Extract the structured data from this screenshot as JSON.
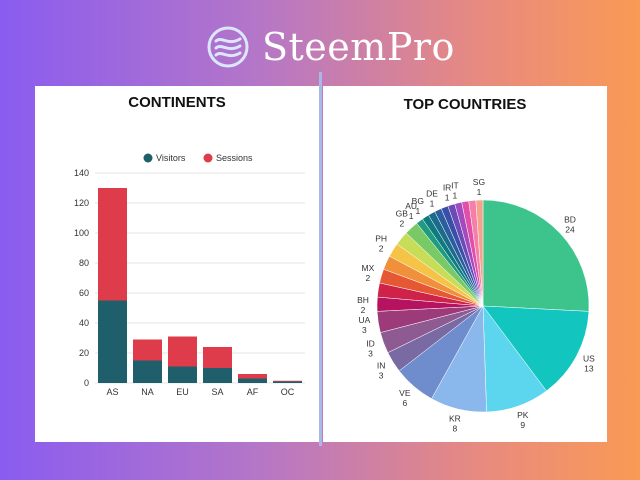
{
  "brand": {
    "name": "SteemPro",
    "logo_icon": "waves-logo-icon"
  },
  "colors": {
    "visitors": "#1f5f6b",
    "sessions": "#de3c4b",
    "divider": "#a9b8e8"
  },
  "chart_data": [
    {
      "type": "bar",
      "stacked": true,
      "title": "CONTINENTS",
      "categories": [
        "AS",
        "NA",
        "EU",
        "SA",
        "AF",
        "OC"
      ],
      "series": [
        {
          "name": "Visitors",
          "values": [
            55,
            15,
            11,
            10,
            3,
            1
          ]
        },
        {
          "name": "Sessions",
          "values": [
            75,
            14,
            20,
            14,
            3,
            0.5
          ]
        }
      ],
      "ylim": [
        0,
        140
      ],
      "yticks": [
        0,
        20,
        40,
        60,
        80,
        100,
        120,
        140
      ],
      "grid": true,
      "legend": "top"
    },
    {
      "type": "pie",
      "title": "TOP COUNTRIES",
      "slices": [
        {
          "label": "BD",
          "value": 24,
          "color": "#3cc48c"
        },
        {
          "label": "US",
          "value": 13,
          "color": "#12c6bf"
        },
        {
          "label": "PK",
          "value": 9,
          "color": "#5bd6ee"
        },
        {
          "label": "KR",
          "value": 8,
          "color": "#8ab8ec"
        },
        {
          "label": "VE",
          "value": 6,
          "color": "#6f8ccc"
        },
        {
          "label": "IN",
          "value": 3,
          "color": "#7a6aa3"
        },
        {
          "label": "ID",
          "value": 3,
          "color": "#8d5a92"
        },
        {
          "label": "UA",
          "value": 3,
          "color": "#9c3a7a"
        },
        {
          "label": "BH",
          "value": 2,
          "color": "#b5135f"
        },
        {
          "label": "",
          "value": 2,
          "color": "#cf2248"
        },
        {
          "label": "MX",
          "value": 2,
          "color": "#e65834"
        },
        {
          "label": "",
          "value": 2,
          "color": "#f0903a"
        },
        {
          "label": "PH",
          "value": 2,
          "color": "#f5c447"
        },
        {
          "label": "",
          "value": 2,
          "color": "#c7dd57"
        },
        {
          "label": "GB",
          "value": 2,
          "color": "#79c966"
        },
        {
          "label": "AU",
          "value": 1,
          "color": "#1f9b80"
        },
        {
          "label": "BG",
          "value": 1,
          "color": "#0f7a7f"
        },
        {
          "label": "",
          "value": 1,
          "color": "#1b6b8a"
        },
        {
          "label": "DE",
          "value": 1,
          "color": "#2b5e9e"
        },
        {
          "label": "",
          "value": 1,
          "color": "#3a4fa8"
        },
        {
          "label": "IR",
          "value": 1,
          "color": "#6b4bb5"
        },
        {
          "label": "IT",
          "value": 1,
          "color": "#a24bc0"
        },
        {
          "label": "",
          "value": 1,
          "color": "#e14fa7"
        },
        {
          "label": "",
          "value": 1,
          "color": "#f57fa9"
        },
        {
          "label": "SG",
          "value": 1,
          "color": "#f7a38c"
        }
      ]
    }
  ]
}
